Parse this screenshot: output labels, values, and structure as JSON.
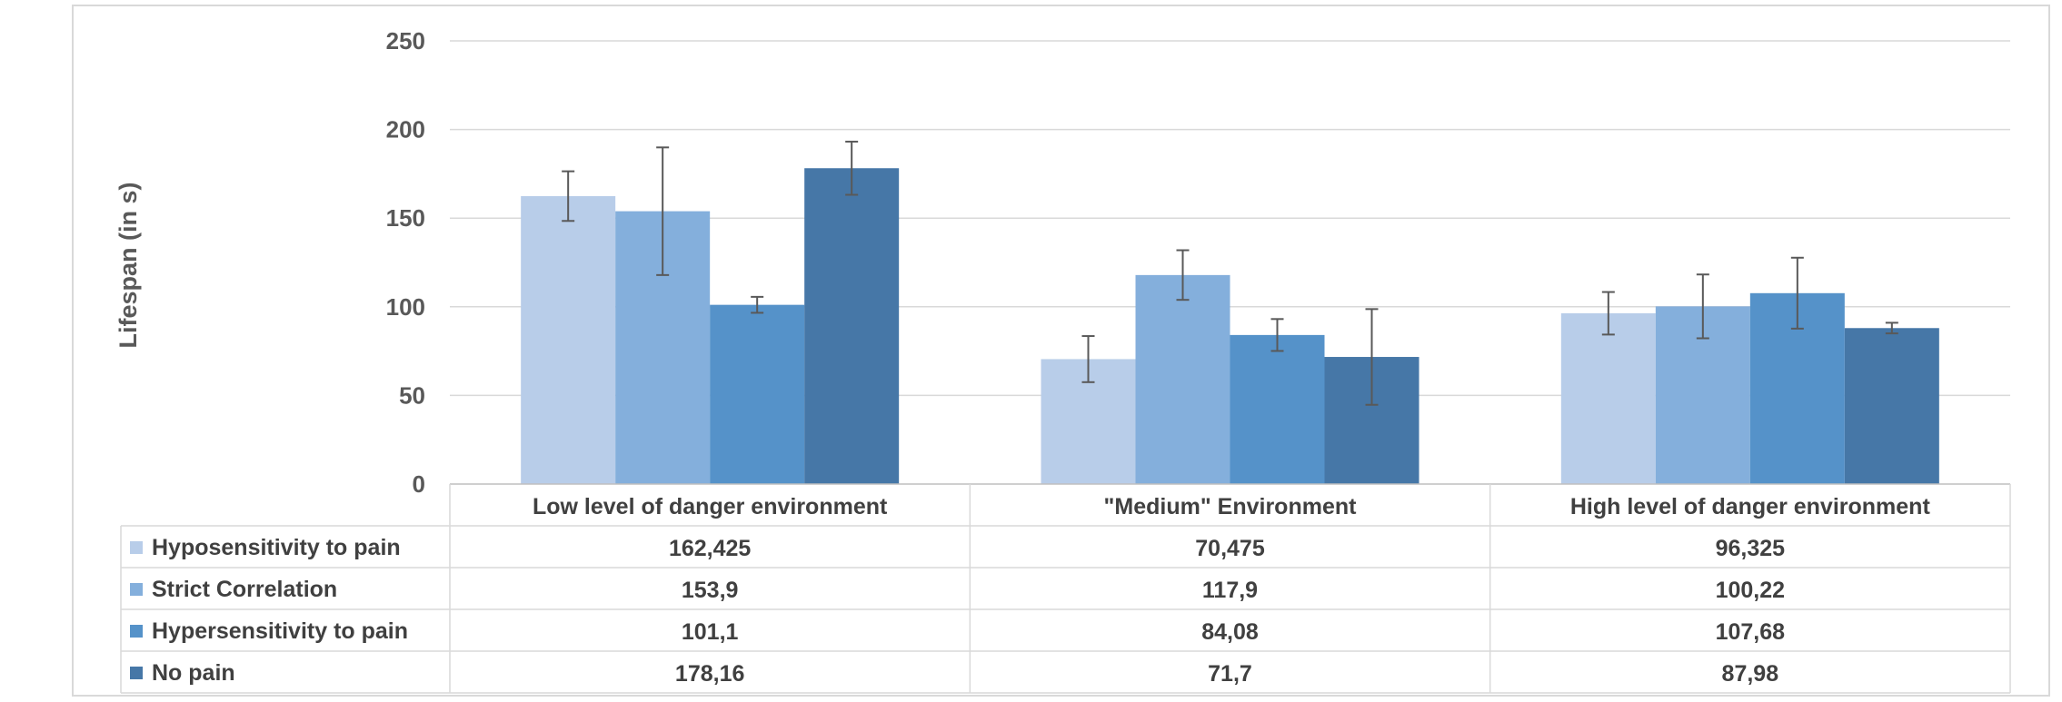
{
  "chart_data": {
    "type": "bar",
    "title": "",
    "xlabel": "",
    "ylabel": "Lifespan (in s)",
    "ylim": [
      0,
      250
    ],
    "yticks": [
      0,
      50,
      100,
      150,
      200,
      250
    ],
    "grid": true,
    "legend": "data-table-left",
    "categories": [
      "Low level of danger environment",
      "\"Medium\" Environment",
      "High level of danger environment"
    ],
    "series": [
      {
        "name": "Hyposensitivity to pain",
        "color": "#b8cde9",
        "values": [
          162.425,
          70.475,
          96.325
        ],
        "labels": [
          "162,425",
          "70,475",
          "96,325"
        ],
        "error": [
          14,
          13,
          12
        ]
      },
      {
        "name": "Strict Correlation",
        "color": "#84afdc",
        "values": [
          153.9,
          117.9,
          100.22
        ],
        "labels": [
          "153,9",
          "117,9",
          "100,22"
        ],
        "error": [
          36,
          14,
          18
        ]
      },
      {
        "name": "Hypersensitivity to pain",
        "color": "#5592c9",
        "values": [
          101.1,
          84.08,
          107.68
        ],
        "labels": [
          "101,1",
          "84,08",
          "107,68"
        ],
        "error": [
          4.5,
          9,
          20
        ]
      },
      {
        "name": "No pain",
        "color": "#4677a7",
        "values": [
          178.16,
          71.7,
          87.98
        ],
        "labels": [
          "178,16",
          "71,7",
          "87,98"
        ],
        "error": [
          15,
          27,
          3
        ]
      }
    ]
  }
}
